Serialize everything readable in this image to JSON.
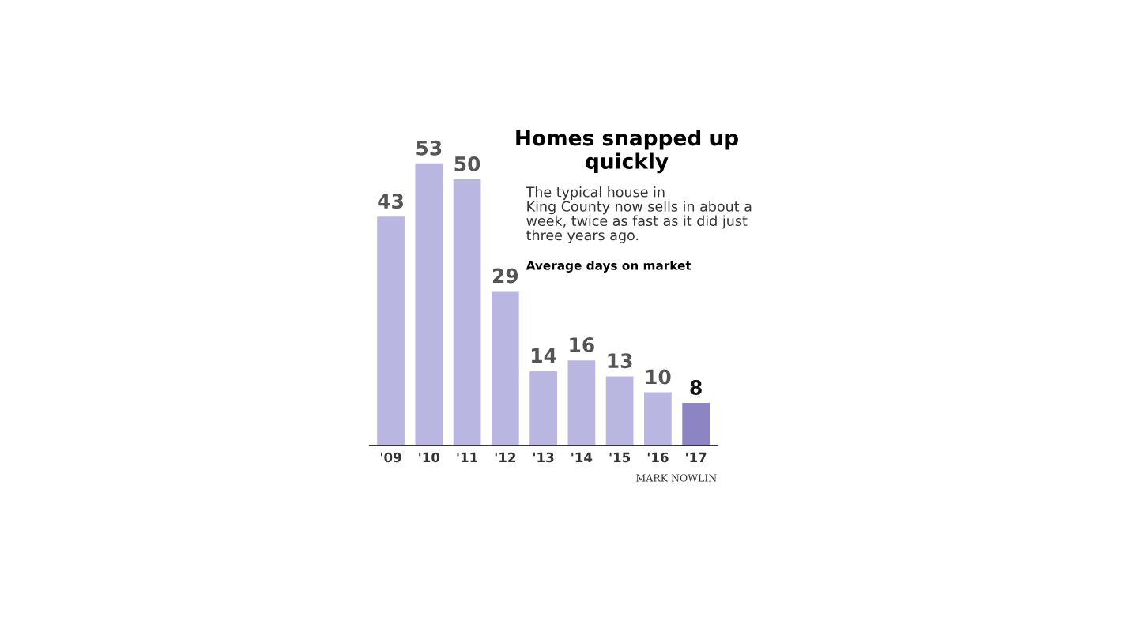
{
  "chart_data": {
    "type": "bar",
    "title": "Homes snapped up\nquickly",
    "subtitle": "The typical house in\nKing County now sells in about a\nweek, twice as fast as it did just\nthree years ago.",
    "ylabel": "Average days on market",
    "categories": [
      "'09",
      "'10",
      "'11",
      "'12",
      "'13",
      "'14",
      "'15",
      "'16",
      "'17"
    ],
    "values": [
      43,
      53,
      50,
      29,
      14,
      16,
      13,
      10,
      8
    ],
    "colors": [
      "#b9b7e1",
      "#b9b7e1",
      "#b9b7e1",
      "#b9b7e1",
      "#b9b7e1",
      "#b9b7e1",
      "#b9b7e1",
      "#b9b7e1",
      "#8d84c4"
    ],
    "data_labels": true,
    "grid": false,
    "annotations": [
      "MARK NOWLIN"
    ]
  }
}
